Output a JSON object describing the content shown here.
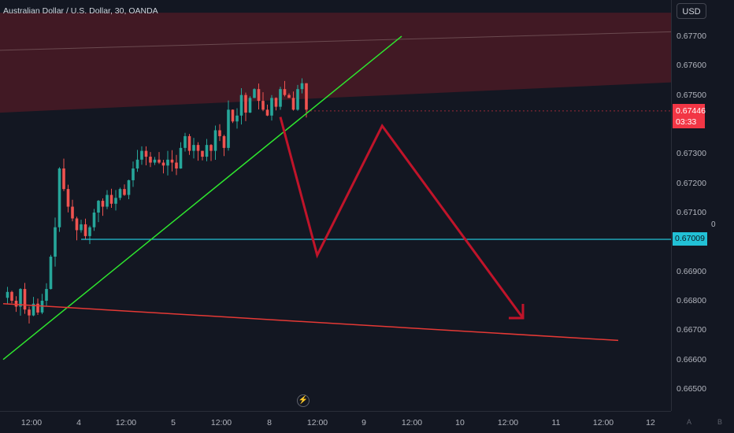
{
  "header": {
    "symbol_title": "Australian Dollar / U.S. Dollar, 30, OANDA"
  },
  "price_axis": {
    "currency_button": "USD",
    "ticks": [
      "0.67700",
      "0.67600",
      "0.67500",
      "0.67300",
      "0.67200",
      "0.67100",
      "0.66900",
      "0.66800",
      "0.66700",
      "0.66600",
      "0.66500"
    ],
    "current_price": "0.67446",
    "countdown": "03:33",
    "level_label": "0.67009",
    "side_label": "0"
  },
  "time_axis": {
    "ticks": [
      "12:00",
      "4",
      "12:00",
      "5",
      "12:00",
      "8",
      "12:00",
      "9",
      "12:00",
      "10",
      "12:00",
      "11",
      "12:00",
      "12"
    ]
  },
  "corner_buttons": {
    "a": "A",
    "b": "B"
  },
  "colors": {
    "background": "#131722",
    "candle_up": "#26a69a",
    "candle_down": "#ef5350",
    "current_price": "#f23645",
    "level_line": "#22c1d6",
    "trendline_green": "#2ee62e",
    "trendline_red": "#e53935",
    "projection_arrow": "#c0142a",
    "zone_fill": "#4a1a24"
  },
  "chart_data": {
    "type": "candlestick",
    "title": "Australian Dollar / U.S. Dollar, 30, OANDA",
    "ylim": [
      0.6645,
      0.6778
    ],
    "y_ticks": [
      0.677,
      0.676,
      0.675,
      0.673,
      0.672,
      0.671,
      0.669,
      0.668,
      0.667,
      0.666,
      0.665
    ],
    "current_price": 0.67446,
    "horizontal_level": 0.67009,
    "price_path": [
      0.6681,
      0.6683,
      0.668,
      0.6678,
      0.6684,
      0.6677,
      0.6675,
      0.6679,
      0.6676,
      0.668,
      0.6684,
      0.6695,
      0.6705,
      0.6725,
      0.6718,
      0.6712,
      0.6708,
      0.6704,
      0.6706,
      0.6702,
      0.6705,
      0.671,
      0.6714,
      0.6712,
      0.6716,
      0.6713,
      0.6715,
      0.6718,
      0.6716,
      0.6721,
      0.6725,
      0.6728,
      0.6731,
      0.6729,
      0.6727,
      0.6728,
      0.6727,
      0.6726,
      0.6728,
      0.6727,
      0.6725,
      0.6732,
      0.6736,
      0.6731,
      0.6733,
      0.6731,
      0.6729,
      0.6733,
      0.6731,
      0.6738,
      0.6736,
      0.6732,
      0.6745,
      0.6741,
      0.6743,
      0.675,
      0.6744,
      0.6749,
      0.6752,
      0.6748,
      0.6745,
      0.6743,
      0.6749,
      0.6746,
      0.6752,
      0.675,
      0.6749,
      0.6745,
      0.6752,
      0.6754,
      0.6745
    ],
    "trendlines": [
      {
        "name": "ascending-support",
        "color": "green",
        "from": {
          "bar": 0,
          "price": 0.666
        },
        "to": {
          "bar": 92,
          "price": 0.677
        }
      },
      {
        "name": "descending-support",
        "color": "red",
        "from": {
          "bar": 0,
          "price": 0.6679
        },
        "to": {
          "bar": 142,
          "price": 0.66665
        }
      }
    ],
    "resistance_zone": {
      "lower_from": 0.6744,
      "lower_to": 0.67543,
      "upper": 0.6778
    },
    "projection": [
      {
        "bar": 64,
        "price": 0.67425
      },
      {
        "bar": 72.5,
        "price": 0.66955
      },
      {
        "bar": 87.5,
        "price": 0.67395
      },
      {
        "bar": 120,
        "price": 0.66741
      }
    ]
  }
}
